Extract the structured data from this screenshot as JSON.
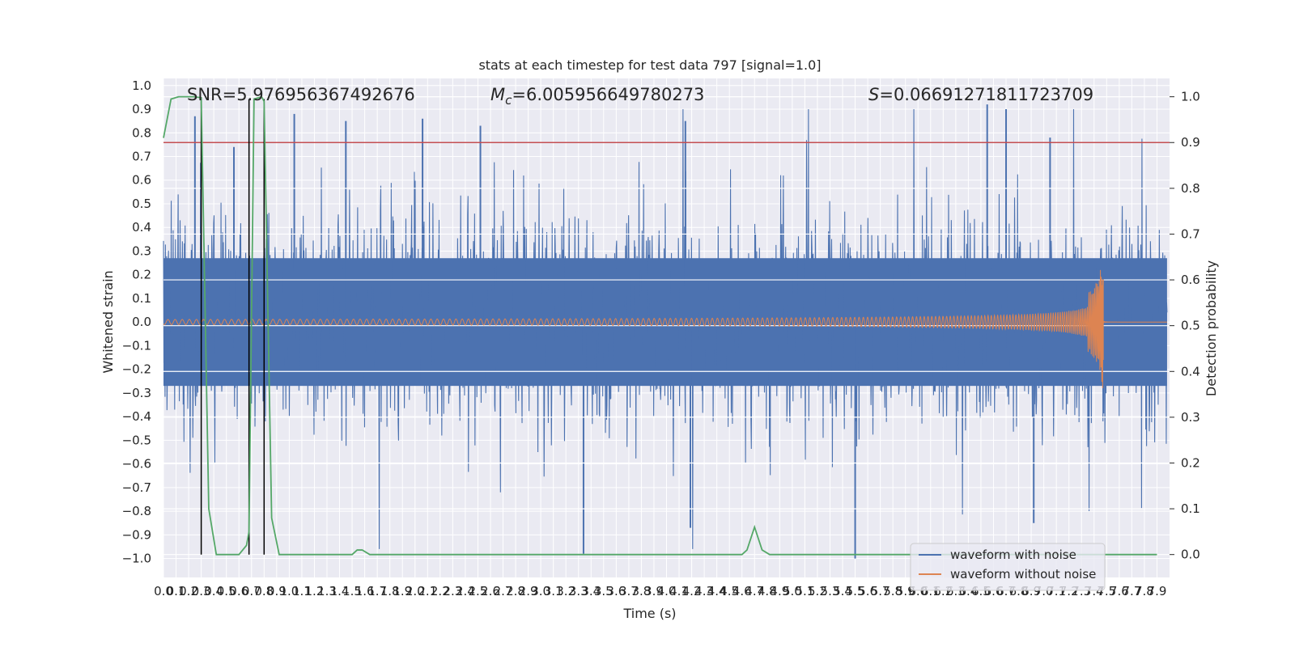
{
  "chart_data": {
    "type": "line",
    "title": "stats at each timestep for test data 797 [signal=1.0]",
    "xlabel": "Time (s)",
    "ylabel_left": "Whitened strain",
    "ylabel_right": "Detection probability",
    "xlim": [
      0.0,
      8.0
    ],
    "ylim_left": [
      -1.08,
      1.03
    ],
    "ylim_right": [
      -0.05,
      1.04
    ],
    "x_ticks": [
      "0.0",
      "0.1",
      "0.2",
      "0.3",
      "0.4",
      "0.5",
      "0.6",
      "0.7",
      "0.8",
      "0.9",
      "1.0",
      "1.1",
      "1.2",
      "1.3",
      "1.4",
      "1.5",
      "1.6",
      "1.7",
      "1.8",
      "1.9",
      "2.0",
      "2.1",
      "2.2",
      "2.3",
      "2.4",
      "2.5",
      "2.6",
      "2.7",
      "2.8",
      "2.9",
      "3.0",
      "3.1",
      "3.2",
      "3.3",
      "3.4",
      "3.5",
      "3.6",
      "3.7",
      "3.8",
      "3.9",
      "4.0",
      "4.1",
      "4.2",
      "4.3",
      "4.4",
      "4.5",
      "4.6",
      "4.7",
      "4.8",
      "4.9",
      "5.0",
      "5.1",
      "5.2",
      "5.3",
      "5.4",
      "5.5",
      "5.6",
      "5.7",
      "5.8",
      "5.9",
      "6.0",
      "6.1",
      "6.2",
      "6.3",
      "6.4",
      "6.5",
      "6.6",
      "6.7",
      "6.8",
      "6.9",
      "7.0",
      "7.1",
      "7.2",
      "7.3",
      "7.4",
      "7.5",
      "7.6",
      "7.7",
      "7.8",
      "7.9"
    ],
    "y_ticks_left": [
      "1.0",
      "0.9",
      "0.8",
      "0.7",
      "0.6",
      "0.5",
      "0.4",
      "0.3",
      "0.2",
      "0.1",
      "0.0",
      "−0.1",
      "−0.2",
      "−0.3",
      "−0.4",
      "−0.5",
      "−0.6",
      "−0.7",
      "−0.8",
      "−0.9",
      "−1.0"
    ],
    "y_ticks_right": [
      "1.0",
      "0.9",
      "0.8",
      "0.7",
      "0.6",
      "0.5",
      "0.4",
      "0.3",
      "0.2",
      "0.1",
      "0.0"
    ],
    "annotations": {
      "snr": "SNR=5.976956367492676",
      "mc_symbol": "M",
      "mc_sub": "c",
      "mc_value": "=6.005956649780273",
      "s_symbol": "S",
      "s_value": "=0.06691271811723709"
    },
    "threshold": 0.9,
    "vlines_x": [
      0.3,
      0.68,
      0.8
    ],
    "series": [
      {
        "name": "waveform with noise",
        "color": "#4c72b0",
        "noise_amplitude": 0.42,
        "peak_values": [
          0.92,
          -0.98,
          -1.0,
          0.87,
          -0.8,
          0.85
        ]
      },
      {
        "name": "waveform without noise",
        "color": "#dd8452",
        "merger_time": 7.47,
        "merger_peak": 0.18,
        "merger_trough": -0.16
      },
      {
        "name": "detection probability",
        "color": "#55a868",
        "axis": "right",
        "x": [
          0.0,
          0.06,
          0.12,
          0.18,
          0.24,
          0.3,
          0.36,
          0.42,
          0.48,
          0.54,
          0.6,
          0.66,
          0.68,
          0.72,
          0.78,
          0.8,
          0.86,
          0.92,
          0.98,
          1.0,
          1.5,
          1.54,
          1.58,
          1.64,
          1.7,
          4.6,
          4.64,
          4.7,
          4.76,
          4.82,
          4.88,
          5.0,
          6.0,
          7.0,
          7.9
        ],
        "y": [
          0.91,
          0.995,
          1.0,
          1.0,
          1.0,
          0.998,
          0.1,
          0.0,
          0.0,
          0.0,
          0.0,
          0.02,
          0.05,
          0.995,
          1.0,
          0.99,
          0.08,
          0.0,
          0.0,
          0.0,
          0.0,
          0.01,
          0.01,
          0.0,
          0.0,
          0.0,
          0.01,
          0.06,
          0.01,
          0.0,
          0.0,
          0.0,
          0.0,
          0.0,
          0.0
        ]
      },
      {
        "name": "threshold",
        "color": "#c44e52",
        "axis": "right",
        "value": 0.9
      }
    ]
  },
  "legend": {
    "items": [
      {
        "label": "waveform with noise",
        "color": "#4c72b0"
      },
      {
        "label": "waveform without noise",
        "color": "#dd8452"
      }
    ]
  },
  "colors": {
    "plot_bg": "#eaeaf2",
    "grid": "#ffffff",
    "noise": "#4c72b0",
    "clean": "#dd8452",
    "prob": "#55a868",
    "threshold": "#c44e52",
    "vline": "#000000"
  }
}
